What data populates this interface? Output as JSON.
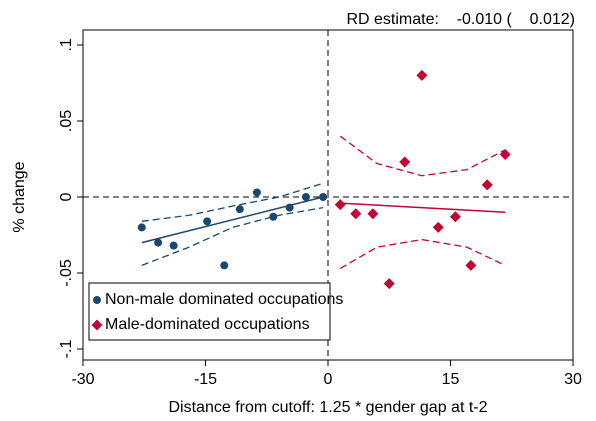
{
  "chart_data": {
    "type": "scatter",
    "annotation": "RD estimate:    -0.010 (    0.012)",
    "xlabel": "Distance from cutoff: 1.25 * gender gap at t-2",
    "ylabel": "% change",
    "xlim": [
      -30,
      30
    ],
    "ylim": [
      -0.1,
      0.1
    ],
    "xticks": [
      -30,
      -15,
      0,
      15,
      30
    ],
    "yticks": [
      {
        "value": -0.1,
        "label": "-.1"
      },
      {
        "value": -0.05,
        "label": "-.05"
      },
      {
        "value": 0,
        "label": "0"
      },
      {
        "value": 0.05,
        "label": ".05"
      },
      {
        "value": 0.1,
        "label": ".1"
      }
    ],
    "cutoff_x": 0,
    "reference_y": 0,
    "legend": "lower left",
    "series": [
      {
        "name": "Non-male dominated occupations",
        "color": "#1a476f",
        "marker": "circle",
        "x": [
          -22.8,
          -20.8,
          -18.9,
          -14.8,
          -12.7,
          -10.8,
          -8.7,
          -6.7,
          -4.7,
          -2.7,
          -0.6
        ],
        "values": [
          -0.02,
          -0.03,
          -0.032,
          -0.016,
          -0.045,
          -0.008,
          0.003,
          -0.013,
          -0.007,
          0.0,
          0.0
        ],
        "fit": {
          "x": [
            -22.8,
            -0.6
          ],
          "values": [
            -0.03,
            0.0
          ]
        },
        "ci_upper": {
          "x": [
            -22.8,
            -17,
            -11.7,
            -6,
            -0.6
          ],
          "values": [
            -0.016,
            -0.012,
            -0.006,
            0.0,
            0.009
          ]
        },
        "ci_lower": {
          "x": [
            -22.8,
            -17,
            -11.7,
            -6,
            -0.6
          ],
          "values": [
            -0.045,
            -0.033,
            -0.02,
            -0.012,
            -0.007
          ]
        }
      },
      {
        "name": "Male-dominated occupations",
        "color": "#c10534",
        "marker": "diamond",
        "x": [
          1.5,
          3.4,
          5.5,
          7.5,
          9.4,
          11.5,
          13.5,
          15.6,
          17.5,
          19.5,
          21.7
        ],
        "values": [
          -0.005,
          -0.011,
          -0.011,
          -0.057,
          0.023,
          0.08,
          -0.02,
          -0.013,
          -0.045,
          0.008,
          0.028
        ],
        "fit": {
          "x": [
            1.5,
            21.7
          ],
          "values": [
            -0.004,
            -0.01
          ]
        },
        "ci_upper": {
          "x": [
            1.5,
            6,
            11.5,
            17,
            21.7
          ],
          "values": [
            0.04,
            0.022,
            0.014,
            0.018,
            0.031
          ]
        },
        "ci_lower": {
          "x": [
            1.5,
            6,
            11.5,
            17,
            21.7
          ],
          "values": [
            -0.047,
            -0.033,
            -0.028,
            -0.033,
            -0.045
          ]
        }
      }
    ]
  }
}
